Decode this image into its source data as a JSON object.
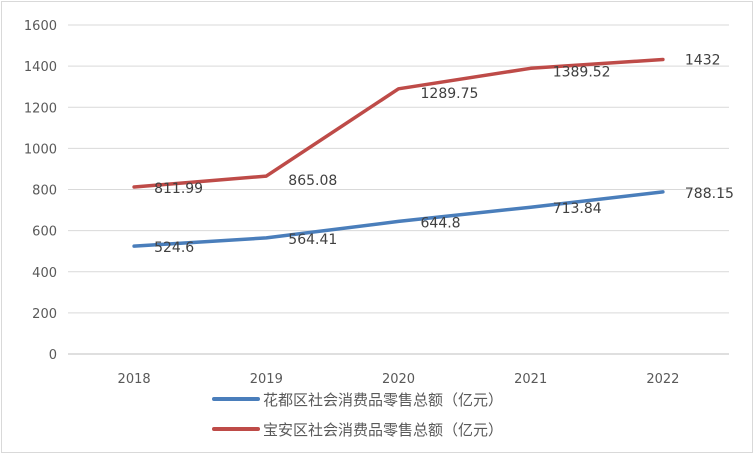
{
  "chart_data": {
    "type": "line",
    "categories": [
      "2018",
      "2019",
      "2020",
      "2021",
      "2022"
    ],
    "ylim": [
      0,
      1600
    ],
    "yticks": [
      0,
      200,
      400,
      600,
      800,
      1000,
      1200,
      1400,
      1600
    ],
    "grid": true,
    "legend_position": "bottom",
    "series": [
      {
        "name": "花都区社会消费品零售总额（亿元）",
        "color": "#4a7ebb",
        "values": [
          524.6,
          564.41,
          644.8,
          713.84,
          788.15
        ],
        "labels": [
          "524.6",
          "564.41",
          "644.8",
          "713.84",
          "788.15"
        ]
      },
      {
        "name": "宝安区社会消费品零售总额（亿元）",
        "color": "#be4b48",
        "values": [
          811.99,
          865.08,
          1289.75,
          1389.52,
          1432
        ],
        "labels": [
          "811.99",
          "865.08",
          "1289.75",
          "1389.52",
          "1432"
        ]
      }
    ]
  }
}
